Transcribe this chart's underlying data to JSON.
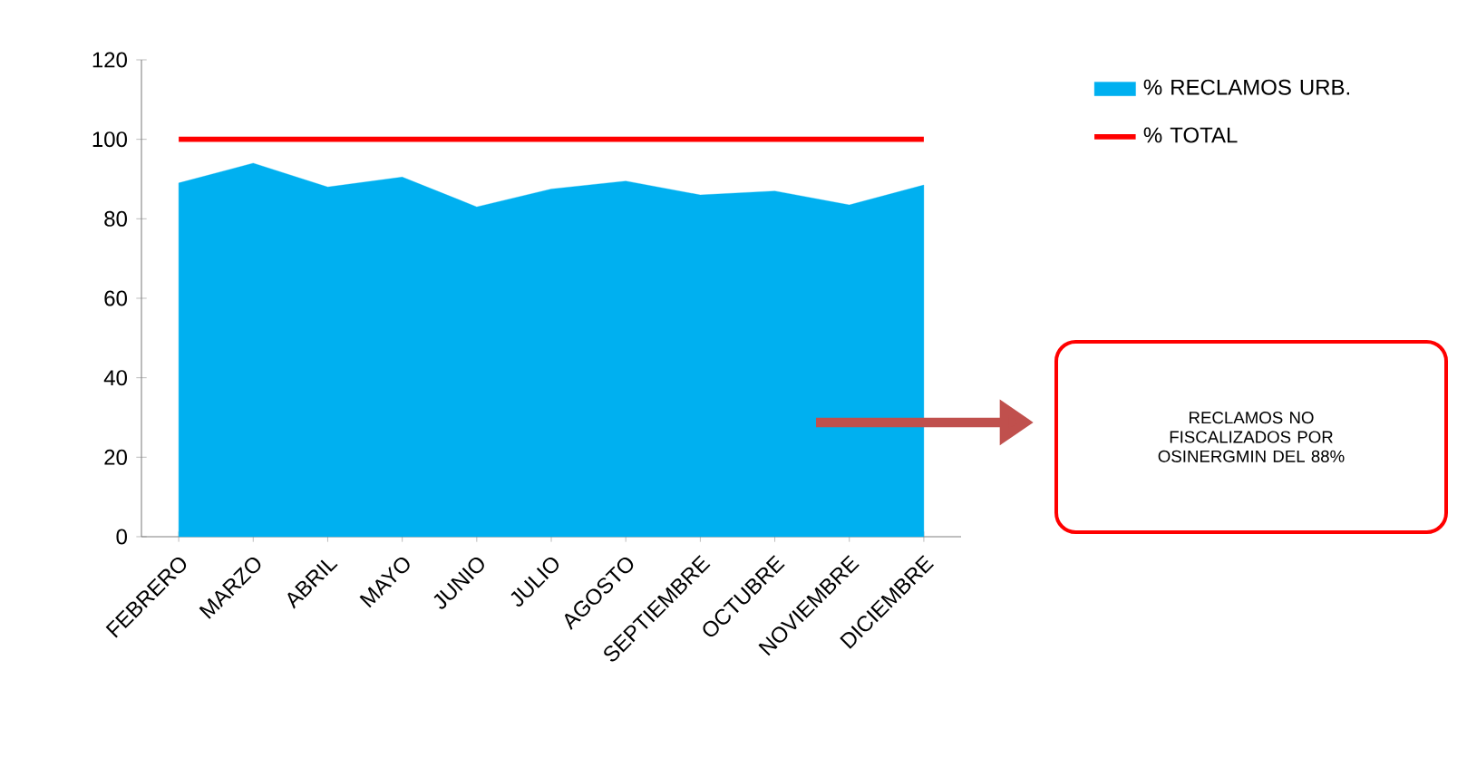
{
  "chart_data": {
    "type": "area",
    "categories": [
      "FEBRERO",
      "MARZO",
      "ABRIL",
      "MAYO",
      "JUNIO",
      "JULIO",
      "AGOSTO",
      "SEPTIEMBRE",
      "OCTUBRE",
      "NOVIEMBRE",
      "DICIEMBRE"
    ],
    "series": [
      {
        "name": "% RECLAMOS URB.",
        "color": "#00b0f0",
        "values": [
          89,
          94,
          88,
          90.5,
          83,
          87.5,
          89.5,
          86,
          87,
          83.5,
          88.5
        ]
      },
      {
        "name": "% TOTAL",
        "type": "line",
        "color": "#ff0000",
        "values": [
          100,
          100,
          100,
          100,
          100,
          100,
          100,
          100,
          100,
          100,
          100
        ]
      }
    ],
    "ylim": [
      0,
      120
    ],
    "yticks": [
      0,
      20,
      40,
      60,
      80,
      100,
      120
    ],
    "legend": "right",
    "annotations": [
      "RECLAMOS NO FISCALIZADOS POR OSINERGMIN DEL 88%"
    ]
  }
}
